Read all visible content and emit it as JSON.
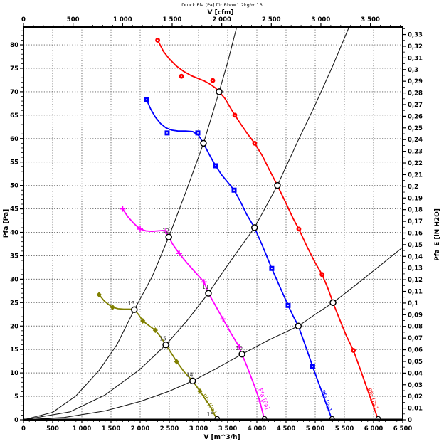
{
  "chart_data": {
    "type": "line",
    "title": "Druck Pfa [Pa] für Rho=1.2kg/m^3",
    "grid": true,
    "colors": {
      "grid": "#5a5a5a",
      "system_curve": "#1a1a1a",
      "operating_point_ring": "#000000",
      "operating_point_fill": "#ffffff",
      "point_number": "#3a3a3a",
      "axis": "#000000"
    },
    "axes": {
      "bottom": {
        "label": "V [m^3/h]",
        "min": 0,
        "max": 6500,
        "major_step": 500,
        "minor_step": 100,
        "tick_labels": [
          "0",
          "500",
          "1 000",
          "1 500",
          "2 000",
          "2 500",
          "3 000",
          "3 500",
          "4 000",
          "4 500",
          "5 000",
          "5 500",
          "6 000",
          "6 500"
        ]
      },
      "top": {
        "label": "V [cfm]",
        "min": 0,
        "max": 3825,
        "major_step": 500,
        "minor_step": 100,
        "unit_to_bottom": 1.699011,
        "tick_labels": [
          "0",
          "500",
          "1 000",
          "1 500",
          "2 000",
          "2 500",
          "3 000",
          "3 500"
        ]
      },
      "left": {
        "label": "Pfa [Pa]",
        "min": 0,
        "max": 83.8,
        "major_step": 5,
        "minor_step": 1,
        "tick_labels": [
          "0",
          "5",
          "10",
          "15",
          "20",
          "25",
          "30",
          "35",
          "40",
          "45",
          "50",
          "55",
          "60",
          "65",
          "70",
          "75",
          "80"
        ]
      },
      "right": {
        "label": "Pfa_E [iN H2O]",
        "min": 0,
        "max": 0.336,
        "major_step": 0.01,
        "minor_step": 0.005,
        "unit_to_left": 249.089,
        "tick_labels": [
          "0",
          "0,01",
          "0,02",
          "0,03",
          "0,04",
          "0,05",
          "0,06",
          "0,07",
          "0,08",
          "0,09",
          "0,1",
          "0,11",
          "0,12",
          "0,13",
          "0,14",
          "0,15",
          "0,16",
          "0,17",
          "0,18",
          "0,19",
          "0,2",
          "0,21",
          "0,22",
          "0,23",
          "0,24",
          "0,25",
          "0,26",
          "0,27",
          "0,28",
          "0,29",
          "0,3",
          "0,31",
          "0,32",
          "0,33"
        ]
      }
    },
    "series": [
      {
        "name": "fan-curve-1",
        "color": "#808000",
        "marker": "diamond",
        "curve_label": "Pfa [Pa]",
        "label_x": 3060,
        "label_y": 5.2,
        "label_angle": 59,
        "points": [
          [
            1296,
            26.7
          ],
          [
            1380,
            25.4
          ],
          [
            1460,
            24.6
          ],
          [
            1528,
            24.0
          ],
          [
            1620,
            23.7
          ],
          [
            1720,
            23.6
          ],
          [
            1820,
            23.6
          ],
          [
            1900,
            23.5
          ],
          [
            1970,
            22.5
          ],
          [
            2045,
            21.1
          ],
          [
            2150,
            20.1
          ],
          [
            2260,
            19.1
          ],
          [
            2350,
            17.7
          ],
          [
            2440,
            16.0
          ],
          [
            2540,
            14.1
          ],
          [
            2626,
            12.4
          ],
          [
            2750,
            10.3
          ],
          [
            2830,
            9.2
          ],
          [
            2900,
            8.3
          ],
          [
            3024,
            6.1
          ],
          [
            3100,
            4.7
          ],
          [
            3200,
            2.9
          ],
          [
            3320,
            0
          ]
        ],
        "markers": [
          [
            1296,
            26.7
          ],
          [
            1528,
            24.0
          ],
          [
            2045,
            21.1
          ],
          [
            2260,
            19.1
          ],
          [
            2626,
            12.4
          ],
          [
            3024,
            6.1
          ]
        ]
      },
      {
        "name": "fan-curve-2",
        "color": "#ff00ff",
        "marker": "plus",
        "curve_label": "Pfa [Pa]",
        "label_x": 4025,
        "label_y": 6.5,
        "label_angle": 70,
        "points": [
          [
            1700,
            45.0
          ],
          [
            1790,
            43.3
          ],
          [
            1900,
            41.8
          ],
          [
            2000,
            40.7
          ],
          [
            2100,
            40.3
          ],
          [
            2200,
            40.2
          ],
          [
            2300,
            40.3
          ],
          [
            2390,
            40.4
          ],
          [
            2440,
            40.3
          ],
          [
            2490,
            39.0
          ],
          [
            2560,
            37.4
          ],
          [
            2670,
            35.5
          ],
          [
            2800,
            33.5
          ],
          [
            2950,
            31.4
          ],
          [
            3095,
            29.4
          ],
          [
            3170,
            27.0
          ],
          [
            3280,
            24.6
          ],
          [
            3420,
            21.5
          ],
          [
            3560,
            18.4
          ],
          [
            3700,
            15.5
          ],
          [
            3745,
            14.0
          ],
          [
            3850,
            10.8
          ],
          [
            3960,
            7.2
          ],
          [
            4050,
            4.0
          ],
          [
            4130,
            0
          ]
        ],
        "markers": [
          [
            1700,
            45.0
          ],
          [
            2000,
            40.7
          ],
          [
            2440,
            40.3
          ],
          [
            2670,
            35.5
          ],
          [
            3095,
            29.4
          ],
          [
            3420,
            21.5
          ],
          [
            3700,
            15.5
          ],
          [
            4050,
            4.0
          ]
        ]
      },
      {
        "name": "fan-curve-3",
        "color": "#0000ff",
        "marker": "square",
        "curve_label": "Pfa [Pa]",
        "label_x": 5095,
        "label_y": 6.2,
        "label_angle": 71,
        "points": [
          [
            2110,
            68.3
          ],
          [
            2180,
            66.3
          ],
          [
            2260,
            64.6
          ],
          [
            2350,
            63.2
          ],
          [
            2440,
            62.3
          ],
          [
            2540,
            61.8
          ],
          [
            2650,
            61.6
          ],
          [
            2780,
            61.6
          ],
          [
            2900,
            61.5
          ],
          [
            3000,
            60.7
          ],
          [
            3085,
            59.0
          ],
          [
            3180,
            56.7
          ],
          [
            3293,
            54.2
          ],
          [
            3400,
            52.2
          ],
          [
            3500,
            50.7
          ],
          [
            3610,
            49.0
          ],
          [
            3700,
            47.0
          ],
          [
            3830,
            43.7
          ],
          [
            3960,
            41.0
          ],
          [
            4100,
            37.0
          ],
          [
            4255,
            32.3
          ],
          [
            4400,
            28.2
          ],
          [
            4536,
            24.4
          ],
          [
            4620,
            22.2
          ],
          [
            4711,
            20.0
          ],
          [
            4830,
            15.9
          ],
          [
            4955,
            11.4
          ],
          [
            5060,
            7.8
          ],
          [
            5180,
            3.7
          ],
          [
            5290,
            0
          ]
        ],
        "markers": [
          [
            2110,
            68.3
          ],
          [
            2463,
            61.2
          ],
          [
            2988,
            61.2
          ],
          [
            3293,
            54.2
          ],
          [
            3610,
            49.0
          ],
          [
            4255,
            32.3
          ],
          [
            4536,
            24.4
          ],
          [
            4955,
            11.4
          ]
        ]
      },
      {
        "name": "fan-curve-4",
        "color": "#ff0000",
        "marker": "circle",
        "curve_label": "Pfa [Pa]",
        "label_x": 5890,
        "label_y": 6.6,
        "label_angle": 71,
        "points": [
          [
            2300,
            81.0
          ],
          [
            2400,
            78.6
          ],
          [
            2500,
            77.0
          ],
          [
            2620,
            75.5
          ],
          [
            2750,
            74.3
          ],
          [
            2880,
            73.4
          ],
          [
            3000,
            72.8
          ],
          [
            3100,
            72.3
          ],
          [
            3200,
            71.6
          ],
          [
            3290,
            70.8
          ],
          [
            3354,
            70.0
          ],
          [
            3450,
            68.6
          ],
          [
            3550,
            66.5
          ],
          [
            3622,
            65.0
          ],
          [
            3720,
            63.2
          ],
          [
            3840,
            61.0
          ],
          [
            3963,
            59.0
          ],
          [
            4100,
            56.2
          ],
          [
            4220,
            53.2
          ],
          [
            4353,
            50.0
          ],
          [
            4500,
            46.2
          ],
          [
            4620,
            43.0
          ],
          [
            4719,
            40.7
          ],
          [
            4850,
            37.2
          ],
          [
            5000,
            33.5
          ],
          [
            5118,
            31.0
          ],
          [
            5220,
            28.0
          ],
          [
            5305,
            25.0
          ],
          [
            5400,
            22.0
          ],
          [
            5530,
            18.0
          ],
          [
            5655,
            14.8
          ],
          [
            5780,
            10.5
          ],
          [
            5930,
            5.2
          ],
          [
            6080,
            0
          ]
        ],
        "markers": [
          [
            2300,
            81.0
          ],
          [
            2707,
            73.3
          ],
          [
            3244,
            72.4
          ],
          [
            3622,
            65.0
          ],
          [
            3963,
            59.0
          ],
          [
            4719,
            40.7
          ],
          [
            5118,
            31.0
          ],
          [
            5655,
            14.8
          ]
        ]
      }
    ],
    "system_curves": [
      {
        "name": "system-curve-1",
        "points": [
          [
            0,
            0
          ],
          [
            500,
            1.6
          ],
          [
            900,
            5.1
          ],
          [
            1300,
            10.6
          ],
          [
            1600,
            16.0
          ],
          [
            1900,
            23.5
          ],
          [
            2200,
            30.4
          ],
          [
            2490,
            39.0
          ],
          [
            2800,
            49.2
          ],
          [
            3085,
            59.0
          ],
          [
            3354,
            70.0
          ],
          [
            3500,
            76.3
          ],
          [
            3655,
            83.8
          ]
        ]
      },
      {
        "name": "system-curve-2",
        "points": [
          [
            0,
            0
          ],
          [
            800,
            1.7
          ],
          [
            1400,
            5.3
          ],
          [
            2000,
            10.8
          ],
          [
            2440,
            16.0
          ],
          [
            2800,
            21.1
          ],
          [
            3170,
            27.0
          ],
          [
            3500,
            33.0
          ],
          [
            3960,
            41.0
          ],
          [
            4353,
            50.0
          ],
          [
            4700,
            59.4
          ],
          [
            5000,
            67.2
          ],
          [
            5300,
            75.5
          ],
          [
            5580,
            83.8
          ]
        ]
      },
      {
        "name": "system-curve-3",
        "points": [
          [
            0,
            0
          ],
          [
            700,
            0.5
          ],
          [
            1400,
            1.9
          ],
          [
            2000,
            3.9
          ],
          [
            2500,
            6.1
          ],
          [
            2900,
            8.3
          ],
          [
            3300,
            10.9
          ],
          [
            3745,
            14.0
          ],
          [
            4200,
            17.0
          ],
          [
            4711,
            20.0
          ],
          [
            5000,
            22.5
          ],
          [
            5305,
            25.0
          ],
          [
            5700,
            28.8
          ],
          [
            6100,
            32.8
          ],
          [
            6500,
            36.8
          ]
        ]
      }
    ],
    "operating_points": [
      {
        "x": 3354,
        "y": 70.0,
        "label": ""
      },
      {
        "x": 4353,
        "y": 50.0,
        "label": ""
      },
      {
        "x": 5305,
        "y": 25.0,
        "label": ""
      },
      {
        "x": 3085,
        "y": 59.0,
        "label": ""
      },
      {
        "x": 3960,
        "y": 41.0,
        "label": ""
      },
      {
        "x": 4711,
        "y": 20.0,
        "label": ""
      },
      {
        "x": 2490,
        "y": 39.0,
        "label": "12"
      },
      {
        "x": 3170,
        "y": 27.0,
        "label": "11"
      },
      {
        "x": 3745,
        "y": 14.0,
        "label": "10"
      },
      {
        "x": 1900,
        "y": 23.5,
        "label": "13"
      },
      {
        "x": 2440,
        "y": 16.0,
        "label": "15"
      },
      {
        "x": 2900,
        "y": 8.3,
        "label": "14"
      }
    ],
    "axis_points": [
      {
        "x": 3320,
        "label": "16"
      },
      {
        "x": 4130,
        "label": ""
      },
      {
        "x": 5290,
        "label": ""
      },
      {
        "x": 6080,
        "label": ""
      }
    ]
  }
}
